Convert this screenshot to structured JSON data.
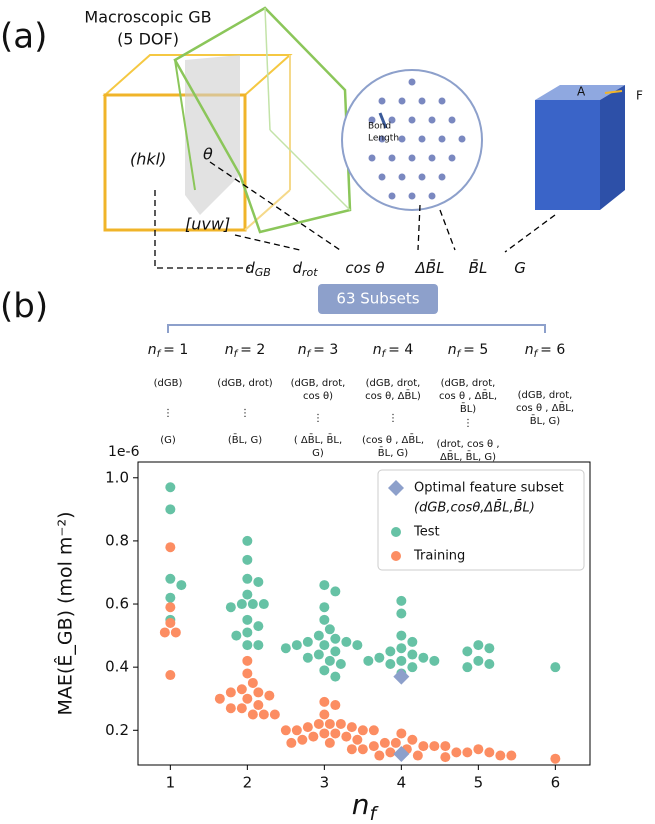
{
  "panel_a": {
    "label": "(a)",
    "title": "Macroscopic GB",
    "subtitle": "(5 DOF)",
    "plane": "(hkl)",
    "angle": "θ",
    "axis": "[uvw]",
    "bond": [
      "Bond",
      "Length"
    ],
    "box_labels": [
      "A",
      "F"
    ],
    "features": [
      {
        "main": "d",
        "sub": "GB"
      },
      {
        "main": "d",
        "sub": "rot"
      },
      {
        "main": "cos θ",
        "sub": ""
      },
      {
        "main": "ΔB̄L",
        "sub": ""
      },
      {
        "main": "B̄L",
        "sub": ""
      },
      {
        "main": "G",
        "sub": ""
      }
    ]
  },
  "panel_b": {
    "label": "(b)",
    "box": "63 Subsets",
    "n": "n",
    "f": "f",
    "dots": "⋮",
    "columns": [
      {
        "count": "= 1",
        "first": [
          "(dGB)"
        ],
        "last": [
          "(G)"
        ]
      },
      {
        "count": "= 2",
        "first": [
          "(dGB, drot)"
        ],
        "last": [
          "(B̄L, G)"
        ]
      },
      {
        "count": "= 3",
        "first": [
          "(dGB, drot,",
          "cos θ)"
        ],
        "last": [
          "( ΔB̄L, B̄L,",
          "G)"
        ]
      },
      {
        "count": "= 4",
        "first": [
          "(dGB, drot,",
          "cos θ, ΔB̄L)"
        ],
        "last": [
          "(cos θ , ΔB̄L,",
          "B̄L, G)"
        ]
      },
      {
        "count": "= 5",
        "first": [
          "(dGB, drot,",
          "cos θ , ΔB̄L,",
          "B̄L)"
        ],
        "last": [
          "(drot, cos θ ,",
          "ΔB̄L, B̄L, G)"
        ]
      },
      {
        "count": "= 6",
        "first": [
          "(dGB, drot,",
          "cos θ , ΔB̄L,",
          "B̄L, G)"
        ],
        "last": []
      }
    ]
  },
  "chart_data": {
    "type": "scatter",
    "y_label": "MAE(Ê_GB) (mol m⁻²)",
    "x_label": {
      "main": "n",
      "sub": "f"
    },
    "y_offset_label": "1e-6",
    "xlim": [
      0.58,
      6.45
    ],
    "xticks": [
      1,
      2,
      3,
      4,
      5,
      6
    ],
    "ylim": [
      0.09,
      1.05
    ],
    "yticks": [
      0.2,
      0.4,
      0.6,
      0.8,
      {
        "value": 1.0,
        "label": "1.0"
      }
    ],
    "legend": "upper right",
    "series": [
      {
        "name": "Optimal feature subset",
        "subtitle": "(dGB,cosθ,ΔB̄L,B̄L)",
        "color": "#8da0cb",
        "marker": "diamond",
        "x": [
          4,
          4
        ],
        "values": [
          0.37,
          0.125
        ]
      },
      {
        "name": "Test",
        "color": "#66c2a5",
        "marker": "circle",
        "x": [
          1,
          1,
          1,
          1,
          1,
          1,
          2,
          2,
          2,
          2,
          2,
          2,
          2,
          2,
          2,
          2,
          2,
          2,
          2,
          2,
          2,
          3,
          3,
          3,
          3,
          3,
          3,
          3,
          3,
          3,
          3,
          3,
          3,
          3,
          3,
          3,
          3,
          3,
          3,
          3,
          3,
          4,
          4,
          4,
          4,
          4,
          4,
          4,
          4,
          4,
          4,
          4,
          4,
          4,
          4,
          4,
          5,
          5,
          5,
          5,
          5,
          5,
          6
        ],
        "values": [
          0.97,
          0.9,
          0.68,
          0.66,
          0.62,
          0.55,
          0.8,
          0.74,
          0.68,
          0.67,
          0.63,
          0.6,
          0.6,
          0.6,
          0.59,
          0.55,
          0.53,
          0.51,
          0.5,
          0.47,
          0.47,
          0.66,
          0.64,
          0.59,
          0.55,
          0.52,
          0.5,
          0.49,
          0.48,
          0.48,
          0.47,
          0.47,
          0.47,
          0.46,
          0.45,
          0.44,
          0.43,
          0.42,
          0.41,
          0.39,
          0.37,
          0.61,
          0.57,
          0.5,
          0.48,
          0.46,
          0.45,
          0.44,
          0.43,
          0.43,
          0.42,
          0.42,
          0.42,
          0.41,
          0.4,
          0.38,
          0.47,
          0.46,
          0.45,
          0.42,
          0.41,
          0.4,
          0.4
        ]
      },
      {
        "name": "Training",
        "color": "#fc8d62",
        "marker": "circle",
        "x": [
          1,
          1,
          1,
          1,
          1,
          1,
          2,
          2,
          2,
          2,
          2,
          2,
          2,
          2,
          2,
          2,
          2,
          2,
          2,
          2,
          2,
          3,
          3,
          3,
          3,
          3,
          3,
          3,
          3,
          3,
          3,
          3,
          3,
          3,
          3,
          3,
          3,
          3,
          3,
          3,
          3,
          4,
          4,
          4,
          4,
          4,
          4,
          4,
          4,
          4,
          4,
          4,
          4,
          4,
          4,
          4,
          5,
          5,
          5,
          5,
          5,
          5,
          6
        ],
        "values": [
          0.78,
          0.59,
          0.54,
          0.51,
          0.51,
          0.375,
          0.42,
          0.38,
          0.35,
          0.33,
          0.32,
          0.32,
          0.31,
          0.3,
          0.3,
          0.28,
          0.27,
          0.27,
          0.25,
          0.25,
          0.25,
          0.29,
          0.28,
          0.25,
          0.22,
          0.22,
          0.22,
          0.21,
          0.21,
          0.2,
          0.2,
          0.2,
          0.2,
          0.19,
          0.19,
          0.18,
          0.18,
          0.17,
          0.17,
          0.16,
          0.16,
          0.19,
          0.17,
          0.16,
          0.16,
          0.15,
          0.15,
          0.15,
          0.15,
          0.14,
          0.14,
          0.14,
          0.13,
          0.13,
          0.12,
          0.12,
          0.14,
          0.13,
          0.13,
          0.12,
          0.12,
          0.115,
          0.11
        ]
      }
    ]
  }
}
